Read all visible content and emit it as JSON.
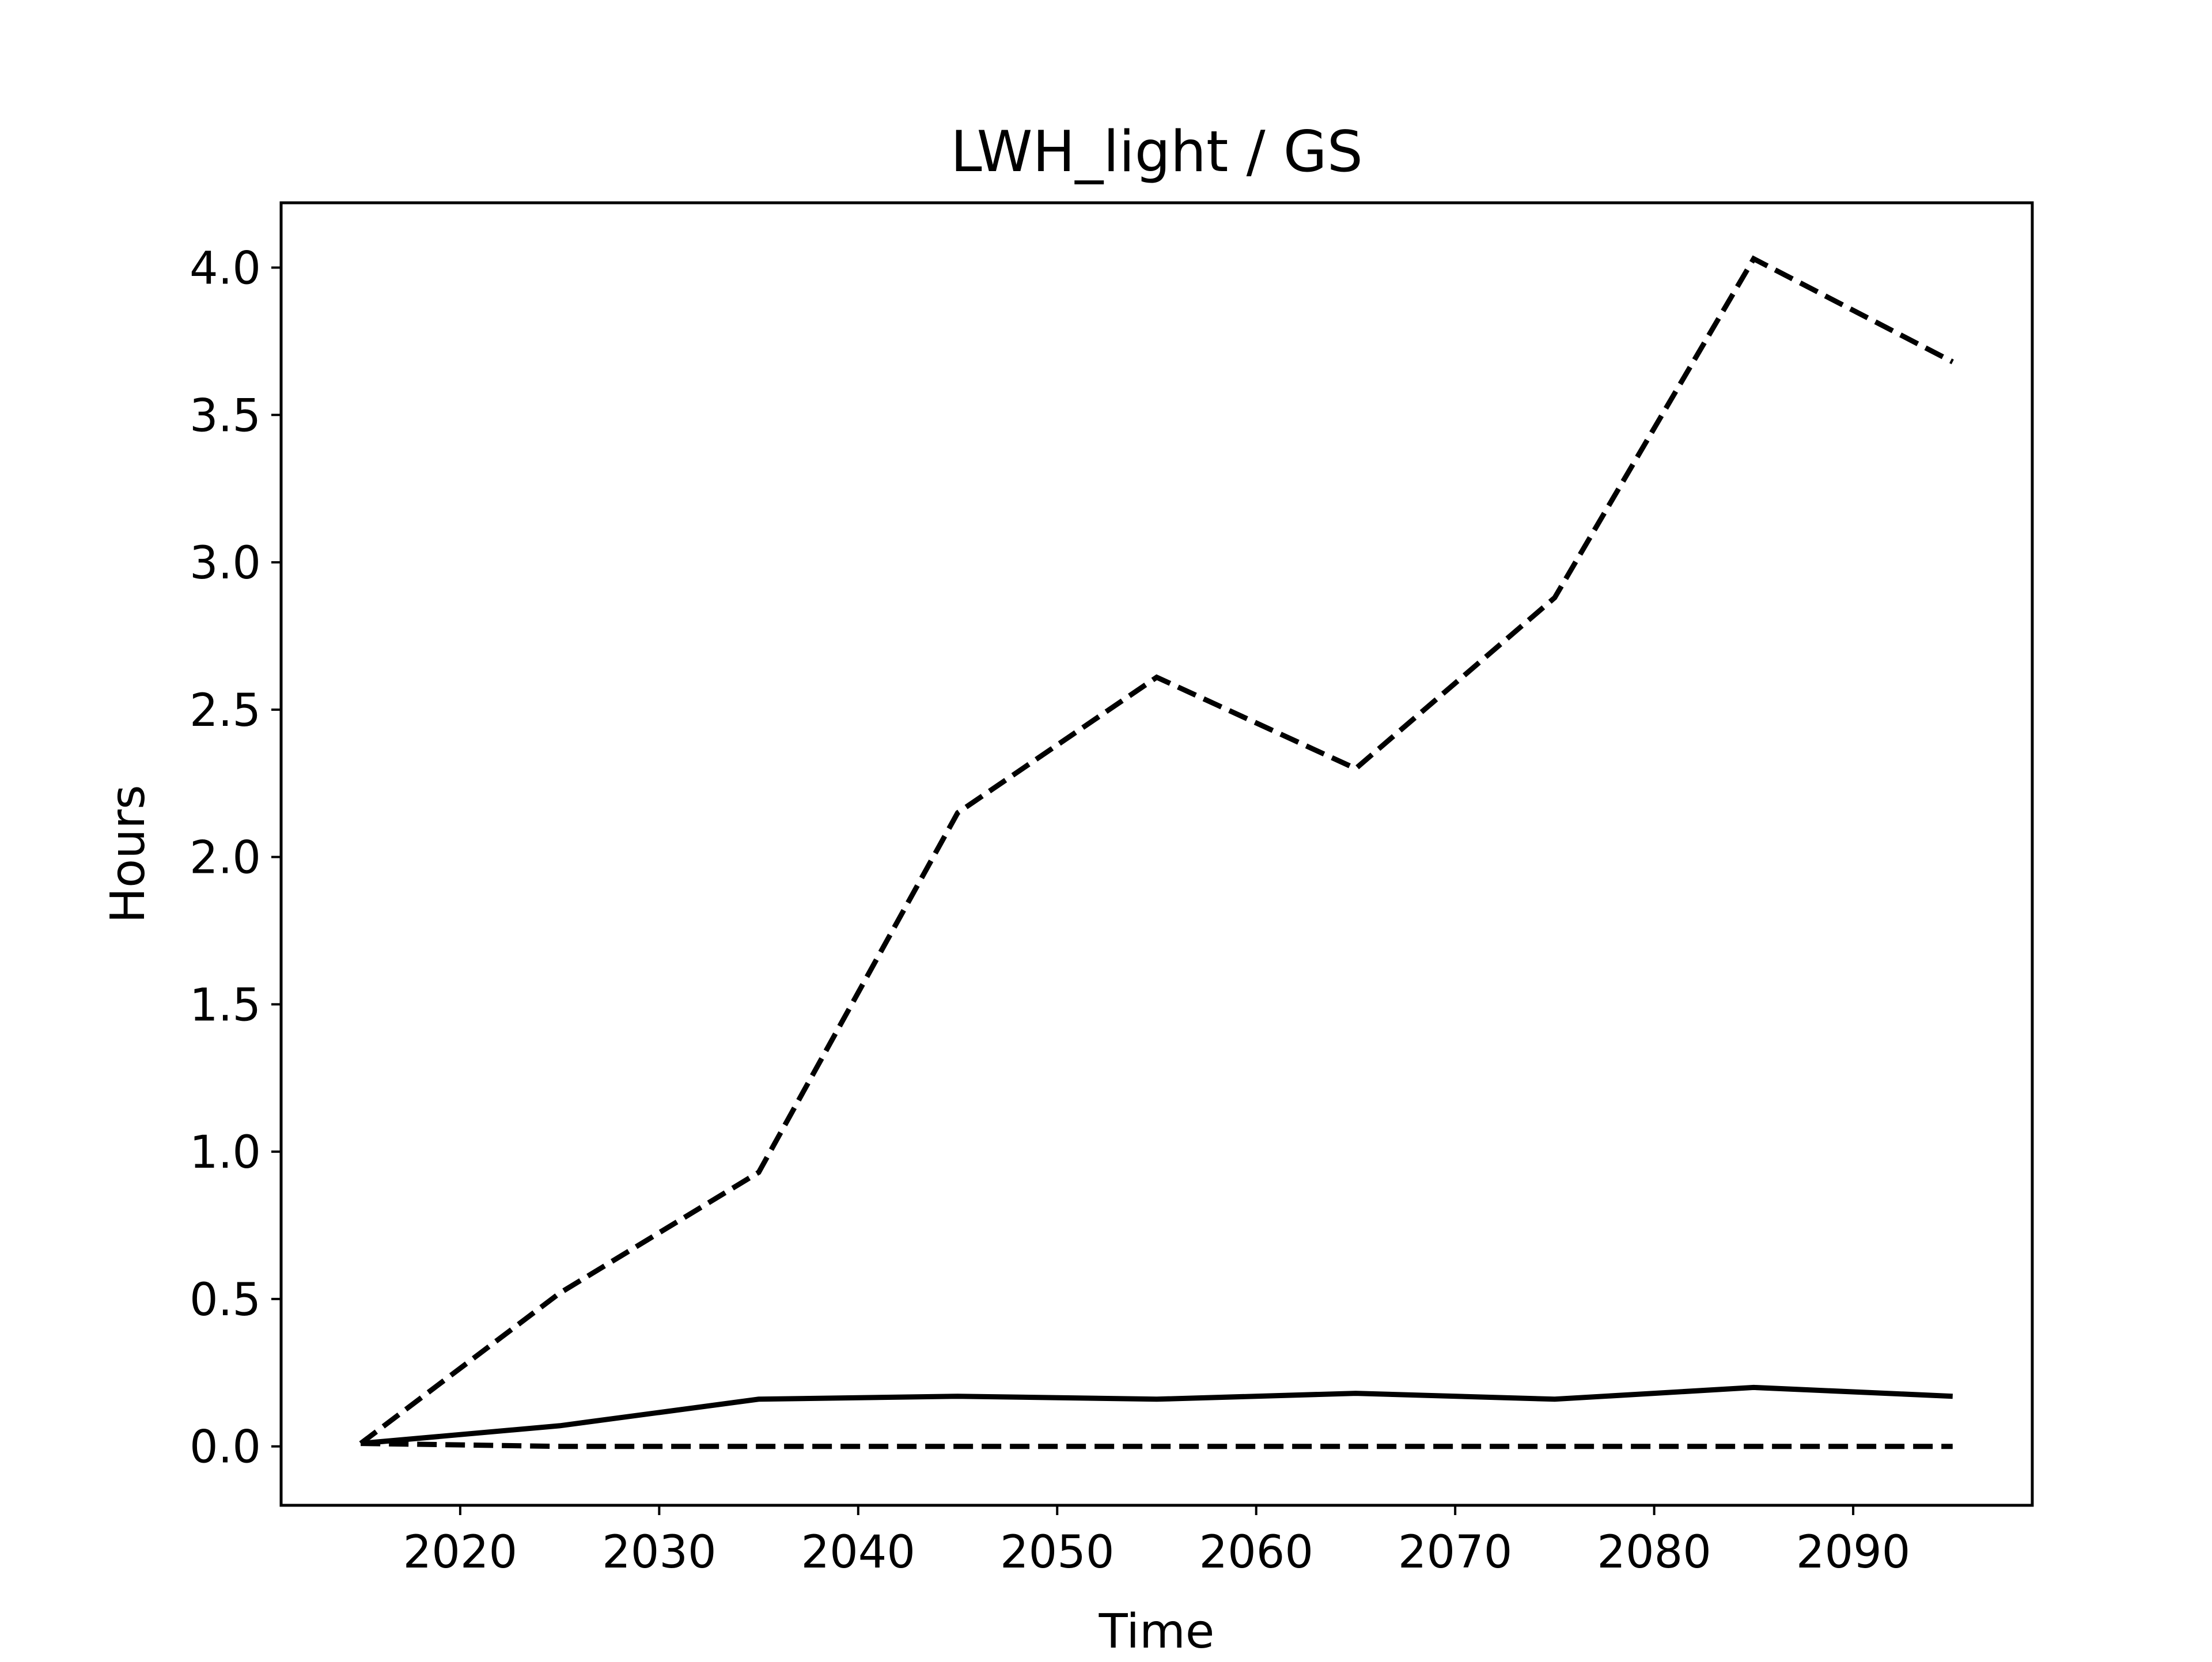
{
  "chart_data": {
    "type": "line",
    "title": "LWH_light / GS",
    "xlabel": "Time",
    "ylabel": "Hours",
    "xlim": [
      2011,
      2099
    ],
    "ylim": [
      -0.2,
      4.22
    ],
    "xticks": [
      2020,
      2030,
      2040,
      2050,
      2060,
      2070,
      2080,
      2090
    ],
    "yticks": [
      0.0,
      0.5,
      1.0,
      1.5,
      2.0,
      2.5,
      3.0,
      3.5,
      4.0
    ],
    "ytick_labels": [
      "0.0",
      "0.5",
      "1.0",
      "1.5",
      "2.0",
      "2.5",
      "3.0",
      "3.5",
      "4.0"
    ],
    "grid": false,
    "legend": false,
    "x": [
      2015,
      2025,
      2035,
      2045,
      2055,
      2065,
      2075,
      2085,
      2095
    ],
    "series": [
      {
        "style": "solid",
        "color": "#000000",
        "values": [
          0.01,
          0.07,
          0.16,
          0.17,
          0.16,
          0.18,
          0.16,
          0.2,
          0.17
        ]
      },
      {
        "style": "dashed",
        "color": "#000000",
        "values": [
          0.01,
          0.52,
          0.93,
          2.15,
          2.61,
          2.3,
          2.88,
          4.03,
          3.68
        ]
      },
      {
        "style": "dashed",
        "color": "#000000",
        "values": [
          0.01,
          0.0,
          0.0,
          0.0,
          0.0,
          0.0,
          0.0,
          0.0,
          0.0
        ]
      }
    ]
  }
}
